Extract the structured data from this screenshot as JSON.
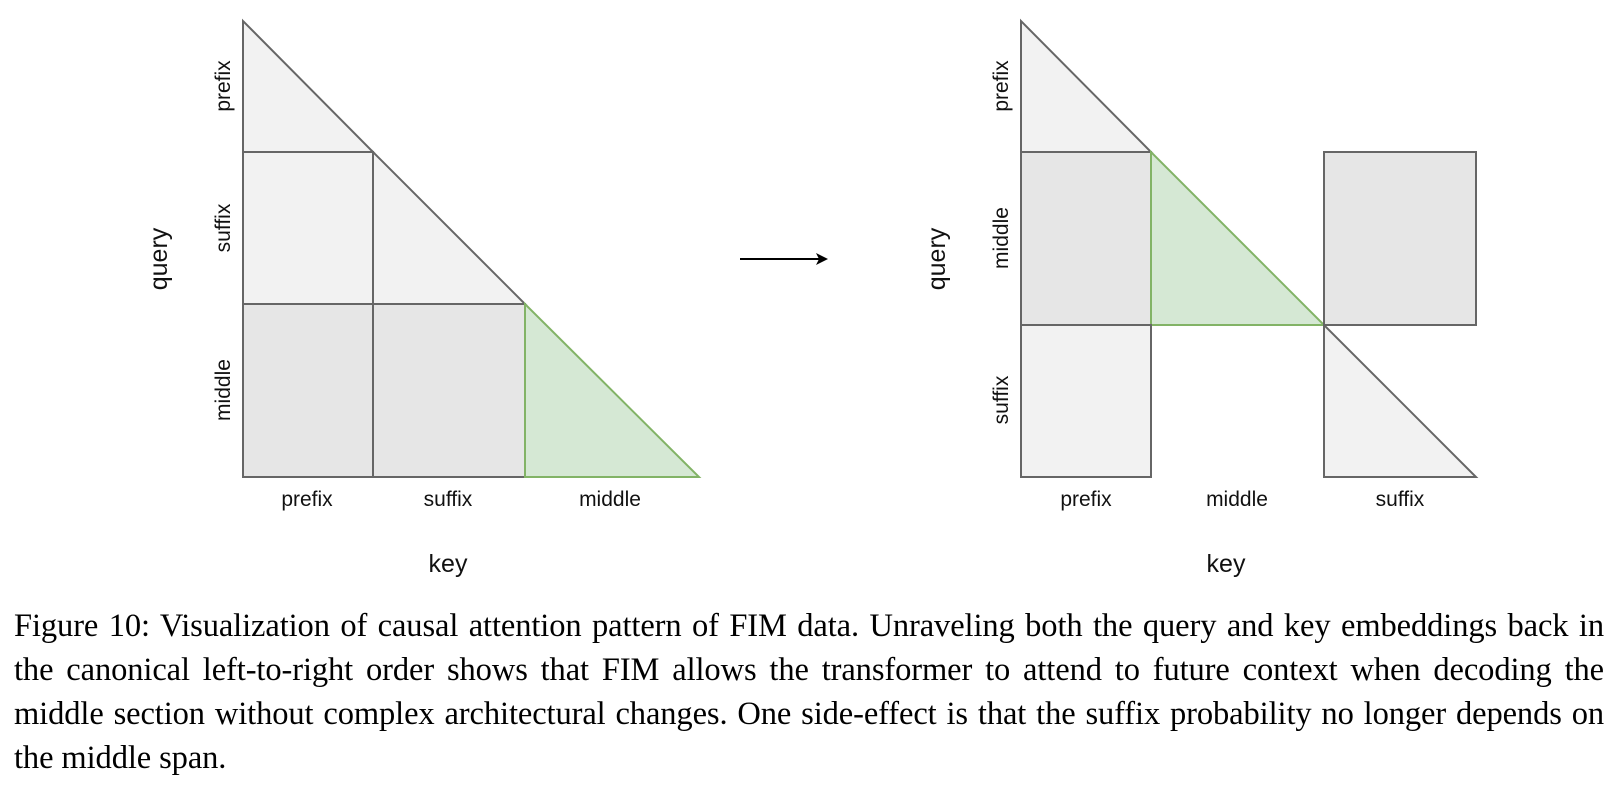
{
  "left_panel": {
    "query_axis_title": "query",
    "key_axis_title": "key",
    "row_labels": [
      "prefix",
      "suffix",
      "middle"
    ],
    "column_labels": [
      "prefix",
      "suffix",
      "middle"
    ]
  },
  "right_panel": {
    "query_axis_title": "query",
    "key_axis_title": "key",
    "row_labels": [
      "prefix",
      "middle",
      "suffix"
    ],
    "column_labels": [
      "prefix",
      "middle",
      "suffix"
    ]
  },
  "colors": {
    "diagonal_block": "#f2f2f2",
    "full_block": "#e6e6e6",
    "highlight_fill": "#d5e8d4",
    "highlight_stroke": "#82b366",
    "outline": "#666666"
  },
  "caption": "Figure 10: Visualization of causal attention pattern of FIM data. Unraveling both the query and key embeddings back in the canonical left-to-right order shows that FIM allows the transformer to attend to future context when decoding the middle section without complex architectural changes. One side-effect is that the suffix probability no longer depends on the middle span."
}
